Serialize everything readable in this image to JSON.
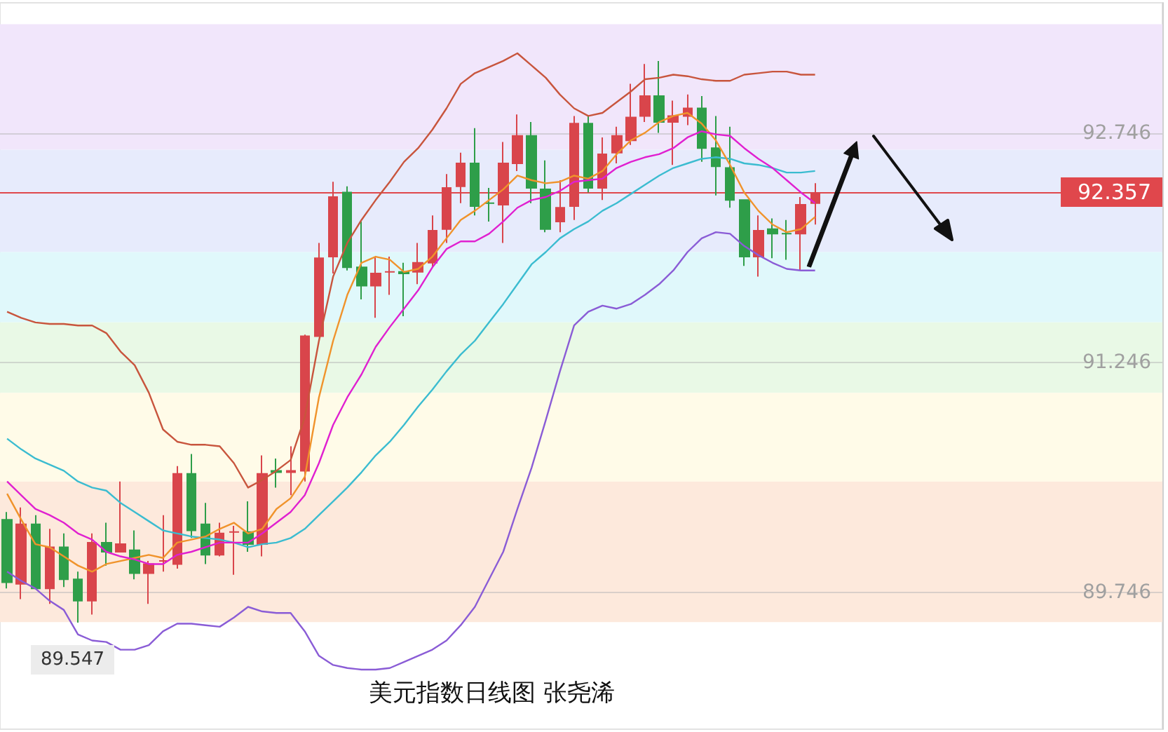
{
  "chart_data": {
    "type": "candlestick",
    "title": "美元指数日线图 张尧浠",
    "categories": [
      null,
      null,
      null,
      null,
      null,
      null,
      null,
      null,
      null,
      null,
      null,
      null,
      null,
      null,
      null,
      null,
      null,
      null,
      null,
      null,
      null,
      null,
      null,
      null,
      null,
      null,
      null,
      null,
      null,
      null,
      null,
      null,
      null,
      null,
      null,
      null,
      null,
      null,
      null,
      null,
      null,
      null,
      null,
      null,
      null,
      null,
      null,
      null,
      null,
      null,
      null,
      null,
      null,
      null,
      null,
      null,
      null,
      null
    ],
    "ohlc": [
      [
        90.22,
        90.27,
        89.77,
        89.81
      ],
      [
        89.8,
        90.3,
        89.7,
        90.19
      ],
      [
        90.19,
        90.25,
        89.77,
        89.77
      ],
      [
        89.77,
        90.16,
        89.67,
        90.04
      ],
      [
        90.04,
        90.13,
        89.78,
        89.83
      ],
      [
        89.83,
        89.88,
        89.547,
        89.69
      ],
      [
        89.69,
        90.13,
        89.6,
        90.07
      ],
      [
        90.07,
        90.2,
        89.92,
        90.01
      ],
      [
        90.01,
        90.47,
        90.01,
        90.06
      ],
      [
        90.02,
        90.15,
        89.83,
        89.87
      ],
      [
        89.87,
        89.95,
        89.67,
        89.93
      ],
      [
        89.95,
        90.25,
        89.88,
        89.95
      ],
      [
        89.93,
        90.57,
        89.9,
        90.52
      ],
      [
        90.52,
        90.65,
        90.1,
        90.15
      ],
      [
        90.19,
        90.33,
        89.93,
        89.99
      ],
      [
        89.99,
        90.2,
        89.98,
        90.13
      ],
      [
        90.14,
        90.18,
        89.86,
        90.14
      ],
      [
        90.14,
        90.34,
        90.01,
        90.06
      ],
      [
        90.06,
        90.64,
        89.98,
        90.52
      ],
      [
        90.54,
        90.62,
        90.43,
        90.53
      ],
      [
        90.53,
        90.7,
        90.38,
        90.54
      ],
      [
        90.54,
        91.43,
        90.47,
        91.42
      ],
      [
        91.42,
        92.03,
        91.42,
        91.93
      ],
      [
        91.94,
        92.43,
        91.83,
        92.33
      ],
      [
        92.36,
        92.4,
        91.85,
        91.87
      ],
      [
        91.87,
        92.17,
        91.66,
        91.75
      ],
      [
        91.75,
        91.94,
        91.54,
        91.83
      ],
      [
        91.84,
        91.94,
        91.69,
        91.84
      ],
      [
        91.84,
        91.9,
        91.55,
        91.83
      ],
      [
        91.84,
        92.03,
        91.76,
        91.9
      ],
      [
        91.9,
        92.21,
        91.87,
        92.11
      ],
      [
        92.12,
        92.48,
        92.03,
        92.39
      ],
      [
        92.4,
        92.62,
        92.29,
        92.55
      ],
      [
        92.55,
        92.78,
        92.21,
        92.27
      ],
      [
        92.29,
        92.39,
        92.17,
        92.29
      ],
      [
        92.28,
        92.69,
        92.03,
        92.55
      ],
      [
        92.55,
        92.87,
        92.5,
        92.73
      ],
      [
        92.73,
        92.82,
        92.29,
        92.39
      ],
      [
        92.38,
        92.57,
        92.1,
        92.12
      ],
      [
        92.17,
        92.44,
        92.1,
        92.26
      ],
      [
        92.27,
        92.86,
        92.18,
        92.81
      ],
      [
        92.81,
        92.86,
        92.36,
        92.39
      ],
      [
        92.39,
        92.72,
        92.31,
        92.61
      ],
      [
        92.62,
        92.79,
        92.55,
        92.73
      ],
      [
        92.7,
        93.07,
        92.67,
        92.85
      ],
      [
        92.86,
        93.2,
        92.82,
        92.99
      ],
      [
        92.99,
        93.22,
        92.75,
        92.82
      ],
      [
        92.82,
        92.96,
        92.54,
        92.86
      ],
      [
        92.86,
        93.0,
        92.8,
        92.91
      ],
      [
        92.91,
        92.99,
        92.56,
        92.65
      ],
      [
        92.65,
        92.86,
        92.34,
        92.53
      ],
      [
        92.52,
        92.79,
        92.26,
        92.31
      ],
      [
        92.31,
        92.31,
        91.88,
        91.94
      ],
      [
        91.94,
        92.21,
        91.81,
        92.11
      ],
      [
        92.12,
        92.19,
        91.93,
        92.09
      ],
      [
        92.09,
        92.18,
        91.92,
        92.09
      ],
      [
        92.09,
        92.33,
        91.85,
        92.28
      ],
      [
        92.29,
        92.42,
        92.15,
        92.357
      ]
    ],
    "colors": [
      "#2e9e49",
      "#d9454b",
      "#2e9e49",
      "#d9454b",
      "#2e9e49",
      "#2e9e49",
      "#d9454b",
      "#2e9e49",
      "#d9454b",
      "#2e9e49",
      "#d9454b",
      "#d9454b",
      "#d9454b",
      "#2e9e49",
      "#2e9e49",
      "#d9454b",
      "#d9454b",
      "#2e9e49",
      "#d9454b",
      "#2e9e49",
      "#d9454b",
      "#d9454b",
      "#d9454b",
      "#d9454b",
      "#2e9e49",
      "#2e9e49",
      "#d9454b",
      "#d9454b",
      "#2e9e49",
      "#d9454b",
      "#d9454b",
      "#d9454b",
      "#d9454b",
      "#2e9e49",
      "#2e9e49",
      "#d9454b",
      "#d9454b",
      "#2e9e49",
      "#2e9e49",
      "#d9454b",
      "#d9454b",
      "#2e9e49",
      "#d9454b",
      "#d9454b",
      "#d9454b",
      "#d9454b",
      "#2e9e49",
      "#d9454b",
      "#d9454b",
      "#2e9e49",
      "#2e9e49",
      "#2e9e49",
      "#2e9e49",
      "#d9454b",
      "#2e9e49",
      "#2e9e49",
      "#d9454b",
      "#d9454b"
    ],
    "series": [
      {
        "type": "line",
        "color": "#c8553d",
        "values": [
          91.58,
          91.54,
          91.51,
          91.5,
          91.5,
          91.49,
          91.49,
          91.44,
          91.32,
          91.23,
          91.05,
          90.81,
          90.73,
          90.71,
          90.71,
          90.7,
          90.59,
          90.43,
          90.48,
          90.54,
          90.61,
          90.89,
          91.39,
          91.81,
          92.03,
          92.18,
          92.31,
          92.43,
          92.56,
          92.65,
          92.77,
          92.91,
          93.07,
          93.14,
          93.18,
          93.22,
          93.27,
          93.19,
          93.11,
          93.0,
          92.91,
          92.86,
          92.88,
          92.95,
          93.02,
          93.1,
          93.11,
          93.13,
          93.12,
          93.1,
          93.09,
          93.09,
          93.13,
          93.14,
          93.15,
          93.15,
          93.13,
          93.13
        ]
      },
      {
        "type": "line",
        "color": "#3bbcd0",
        "values": [
          90.75,
          90.68,
          90.62,
          90.58,
          90.54,
          90.47,
          90.43,
          90.41,
          90.33,
          90.27,
          90.21,
          90.15,
          90.13,
          90.11,
          90.1,
          90.09,
          90.07,
          90.04,
          90.06,
          90.07,
          90.1,
          90.16,
          90.25,
          90.34,
          90.43,
          90.53,
          90.64,
          90.73,
          90.84,
          90.96,
          91.07,
          91.19,
          91.3,
          91.39,
          91.51,
          91.63,
          91.76,
          91.89,
          91.97,
          92.06,
          92.12,
          92.17,
          92.24,
          92.29,
          92.35,
          92.41,
          92.47,
          92.52,
          92.55,
          92.58,
          92.59,
          92.58,
          92.55,
          92.54,
          92.52,
          92.49,
          92.49,
          92.5
        ]
      },
      {
        "type": "line",
        "color": "#8a5cd6",
        "values": [
          89.88,
          89.82,
          89.77,
          89.69,
          89.63,
          89.47,
          89.43,
          89.42,
          89.37,
          89.37,
          89.4,
          89.49,
          89.54,
          89.54,
          89.53,
          89.52,
          89.58,
          89.65,
          89.62,
          89.61,
          89.61,
          89.49,
          89.33,
          89.27,
          89.25,
          89.24,
          89.24,
          89.25,
          89.29,
          89.33,
          89.37,
          89.43,
          89.53,
          89.65,
          89.83,
          90.01,
          90.29,
          90.56,
          90.87,
          91.19,
          91.49,
          91.58,
          91.62,
          91.6,
          91.63,
          91.69,
          91.76,
          91.85,
          91.97,
          92.06,
          92.1,
          92.09,
          92.01,
          91.95,
          91.9,
          91.86,
          91.85,
          91.85
        ]
      },
      {
        "type": "line",
        "color": "#f0932b",
        "values": [
          90.39,
          90.22,
          90.06,
          90.04,
          89.98,
          89.92,
          89.88,
          89.93,
          89.95,
          89.97,
          89.99,
          89.97,
          90.07,
          90.09,
          90.11,
          90.16,
          90.2,
          90.13,
          90.16,
          90.29,
          90.36,
          90.5,
          91.02,
          91.39,
          91.69,
          91.9,
          91.94,
          91.92,
          91.84,
          91.86,
          91.94,
          92.06,
          92.18,
          92.24,
          92.31,
          92.38,
          92.47,
          92.44,
          92.42,
          92.43,
          92.47,
          92.45,
          92.5,
          92.61,
          92.7,
          92.75,
          92.82,
          92.86,
          92.88,
          92.81,
          92.7,
          92.54,
          92.36,
          92.24,
          92.15,
          92.1,
          92.12,
          92.2
        ]
      },
      {
        "type": "line",
        "color": "#e020d0",
        "values": [
          90.47,
          90.38,
          90.29,
          90.25,
          90.2,
          90.13,
          90.09,
          90.01,
          89.98,
          89.96,
          89.93,
          89.93,
          89.99,
          90.01,
          90.04,
          90.07,
          90.07,
          90.07,
          90.13,
          90.2,
          90.27,
          90.38,
          90.59,
          90.84,
          91.02,
          91.17,
          91.35,
          91.48,
          91.6,
          91.72,
          91.87,
          91.99,
          92.04,
          92.04,
          92.09,
          92.17,
          92.26,
          92.31,
          92.33,
          92.37,
          92.43,
          92.44,
          92.45,
          92.52,
          92.56,
          92.59,
          92.61,
          92.65,
          92.72,
          92.76,
          92.74,
          92.73,
          92.65,
          92.58,
          92.52,
          92.44,
          92.36,
          92.29
        ]
      }
    ],
    "ylim": [
      88.85,
      93.6
    ],
    "yticks": [
      89.746,
      91.246,
      92.746
    ],
    "grid": "y",
    "marker": "none",
    "line_style": "solid",
    "bands": [
      {
        "axis": "y",
        "from": 92.64,
        "to": 93.46,
        "color": "#f1e6fb"
      },
      {
        "axis": "y",
        "from": 91.97,
        "to": 92.64,
        "color": "#e7ebfc"
      },
      {
        "axis": "y",
        "from": 91.51,
        "to": 91.97,
        "color": "#e0f8fb"
      },
      {
        "axis": "y",
        "from": 91.05,
        "to": 91.51,
        "color": "#e9f9e6"
      },
      {
        "axis": "y",
        "from": 90.47,
        "to": 91.05,
        "color": "#fffbe8"
      },
      {
        "axis": "y",
        "from": 89.55,
        "to": 90.47,
        "color": "#fde9dc"
      }
    ],
    "ref_lines": [
      {
        "axis": "y",
        "value": 92.357,
        "label": "92.357",
        "color": "#e0474c"
      }
    ],
    "annotations": [
      {
        "text": "89.547",
        "y": 89.547
      }
    ]
  }
}
